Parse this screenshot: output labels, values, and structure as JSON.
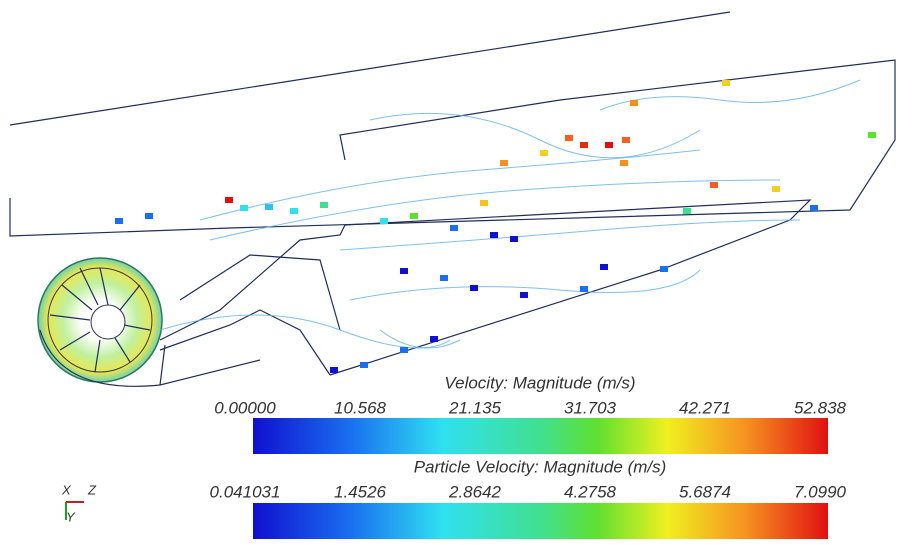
{
  "colorbars": [
    {
      "title": "Velocity: Magnitude (m/s)",
      "labels": [
        "0.00000",
        "10.568",
        "21.135",
        "31.703",
        "42.271",
        "52.838"
      ]
    },
    {
      "title": "Particle Velocity: Magnitude (m/s)",
      "labels": [
        "0.041031",
        "1.4526",
        "2.8642",
        "4.2758",
        "5.6874",
        "7.0990"
      ]
    }
  ],
  "triad": {
    "x": "X",
    "z": "Z",
    "y": "Y"
  }
}
